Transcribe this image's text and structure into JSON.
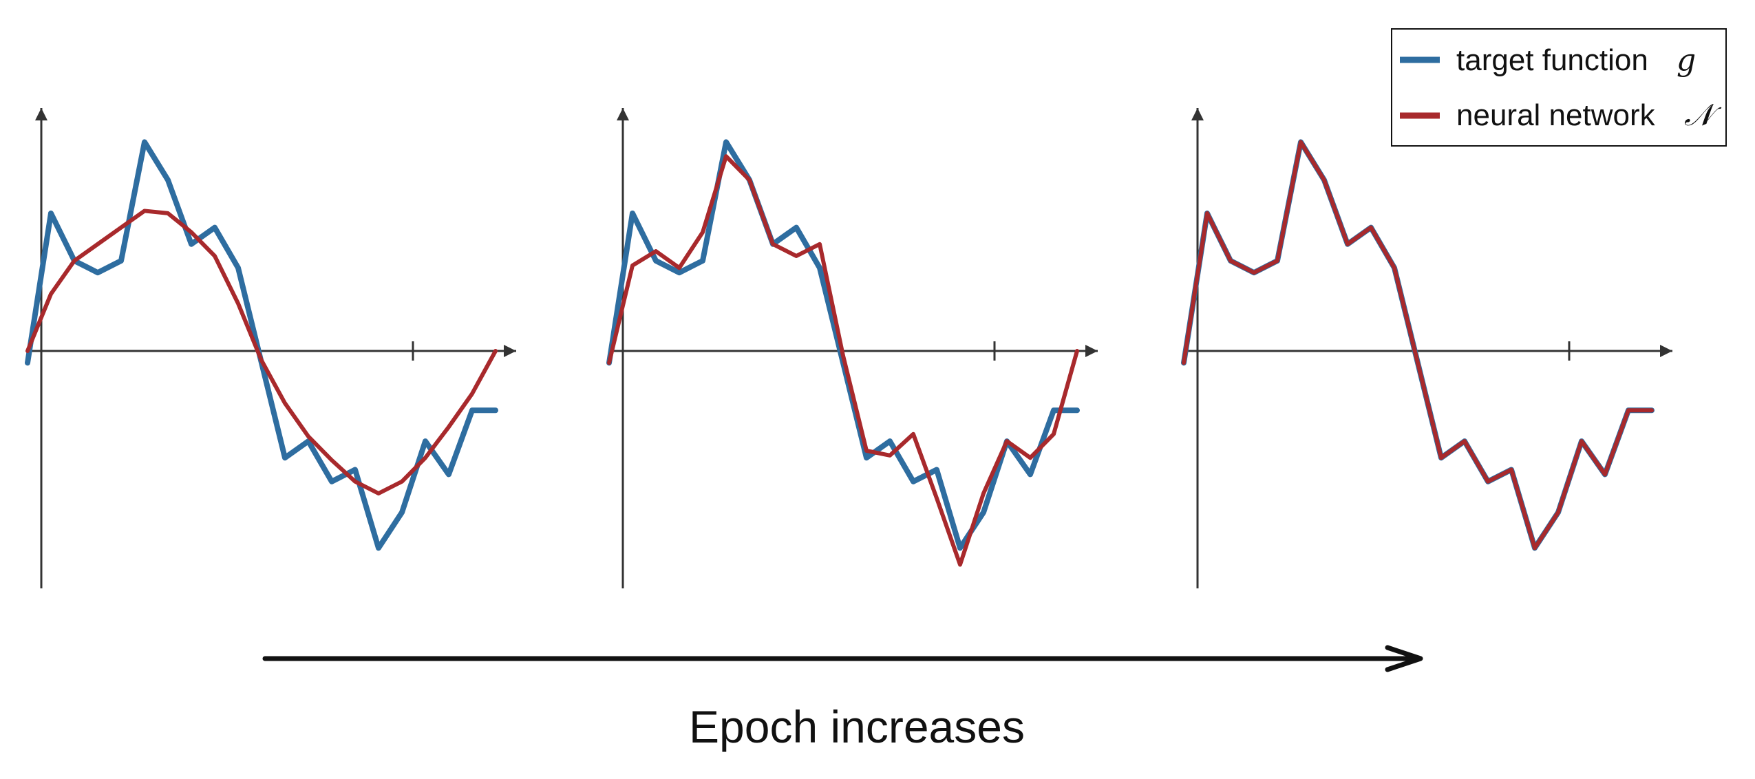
{
  "chart_data": [
    {
      "type": "line",
      "panel": "epoch-early",
      "x_range": [
        0,
        1
      ],
      "y_range": [
        -1,
        1
      ],
      "grid": false,
      "series": [
        {
          "name": "target function",
          "math": "g",
          "color": "#2e6da0"
        },
        {
          "name": "neural network",
          "math": "𝒩",
          "color": "#a8292c"
        }
      ],
      "x": [
        0,
        0.05,
        0.1,
        0.15,
        0.2,
        0.25,
        0.3,
        0.35,
        0.4,
        0.45,
        0.5,
        0.55,
        0.6,
        0.65,
        0.7,
        0.75,
        0.8,
        0.85,
        0.9,
        0.95,
        1.0
      ],
      "network_values": [
        0.0,
        0.24,
        0.38,
        0.45,
        0.52,
        0.59,
        0.58,
        0.5,
        0.4,
        0.2,
        -0.04,
        -0.22,
        -0.36,
        -0.46,
        -0.55,
        -0.6,
        -0.55,
        -0.45,
        -0.32,
        -0.18,
        0.0
      ],
      "target_values": [
        -0.05,
        0.58,
        0.38,
        0.33,
        0.38,
        0.88,
        0.72,
        0.45,
        0.52,
        0.35,
        -0.05,
        -0.45,
        -0.38,
        -0.55,
        -0.5,
        -0.83,
        -0.68,
        -0.38,
        -0.52,
        -0.25,
        -0.25
      ]
    },
    {
      "type": "line",
      "panel": "epoch-middle",
      "x_range": [
        0,
        1
      ],
      "y_range": [
        -1,
        1
      ],
      "grid": false,
      "series": [
        {
          "name": "target function",
          "math": "g",
          "color": "#2e6da0"
        },
        {
          "name": "neural network",
          "math": "𝒩",
          "color": "#a8292c"
        }
      ],
      "x": [
        0,
        0.05,
        0.1,
        0.15,
        0.2,
        0.25,
        0.3,
        0.35,
        0.4,
        0.45,
        0.5,
        0.55,
        0.6,
        0.65,
        0.7,
        0.75,
        0.8,
        0.85,
        0.9,
        0.95,
        1.0
      ],
      "network_values": [
        -0.05,
        0.36,
        0.42,
        0.35,
        0.5,
        0.82,
        0.72,
        0.45,
        0.4,
        0.45,
        -0.02,
        -0.42,
        -0.44,
        -0.35,
        -0.62,
        -0.9,
        -0.6,
        -0.38,
        -0.45,
        -0.35,
        0.0
      ],
      "target_values": [
        -0.05,
        0.58,
        0.38,
        0.33,
        0.38,
        0.88,
        0.72,
        0.45,
        0.52,
        0.35,
        -0.05,
        -0.45,
        -0.38,
        -0.55,
        -0.5,
        -0.83,
        -0.68,
        -0.38,
        -0.52,
        -0.25,
        -0.25
      ]
    },
    {
      "type": "line",
      "panel": "epoch-late",
      "x_range": [
        0,
        1
      ],
      "y_range": [
        -1,
        1
      ],
      "grid": false,
      "series": [
        {
          "name": "target function",
          "math": "g",
          "color": "#2e6da0"
        },
        {
          "name": "neural network",
          "math": "𝒩",
          "color": "#a8292c"
        }
      ],
      "x": [
        0,
        0.05,
        0.1,
        0.15,
        0.2,
        0.25,
        0.3,
        0.35,
        0.4,
        0.45,
        0.5,
        0.55,
        0.6,
        0.65,
        0.7,
        0.75,
        0.8,
        0.85,
        0.9,
        0.95,
        1.0
      ],
      "network_values": [
        -0.05,
        0.58,
        0.38,
        0.33,
        0.38,
        0.88,
        0.72,
        0.45,
        0.52,
        0.35,
        -0.05,
        -0.45,
        -0.38,
        -0.55,
        -0.5,
        -0.83,
        -0.68,
        -0.38,
        -0.52,
        -0.25,
        -0.25
      ],
      "target_values": [
        -0.05,
        0.58,
        0.38,
        0.33,
        0.38,
        0.88,
        0.72,
        0.45,
        0.52,
        0.35,
        -0.05,
        -0.45,
        -0.38,
        -0.55,
        -0.5,
        -0.83,
        -0.68,
        -0.38,
        -0.52,
        -0.25,
        -0.25
      ]
    }
  ],
  "legend": {
    "placement": "top-right",
    "items": [
      {
        "label": "target function",
        "math": "g",
        "color": "#2e6da0"
      },
      {
        "label": "neural network",
        "math": "𝒩",
        "color": "#a8292c"
      }
    ]
  },
  "caption": "Epoch increases",
  "colors": {
    "target": "#2e6da0",
    "network": "#a8292c",
    "axis": "#333333"
  }
}
